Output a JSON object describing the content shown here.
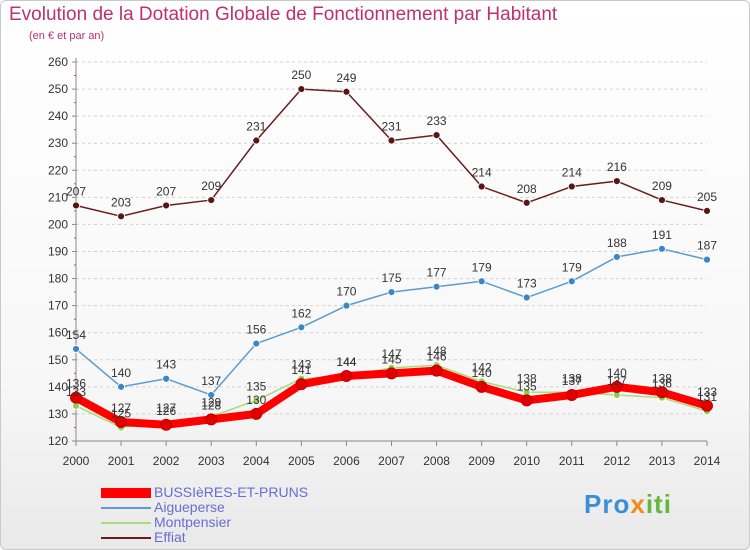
{
  "title": "Evolution de la Dotation Globale de Fonctionnement par Habitant",
  "subtitle": "(en € et par an)",
  "logo": {
    "parts": [
      "Pro",
      "x",
      "iti"
    ],
    "colors": [
      "#3a8fd6",
      "#f08a1c",
      "#62b83a"
    ]
  },
  "chart_data": {
    "type": "line",
    "x": [
      "2000",
      "2001",
      "2002",
      "2003",
      "2004",
      "2005",
      "2006",
      "2007",
      "2008",
      "2009",
      "2010",
      "2011",
      "2012",
      "2013",
      "2014"
    ],
    "ylim": [
      120,
      260
    ],
    "yticks": [
      120,
      130,
      140,
      150,
      160,
      170,
      180,
      190,
      200,
      210,
      220,
      230,
      240,
      250,
      260
    ],
    "grid": "horizontal dashed",
    "legend": "bottom-left",
    "series": [
      {
        "name": "Effiat",
        "color": "#6b1c1c",
        "marker": "#5a1515",
        "values": [
          207,
          203,
          207,
          209,
          231,
          250,
          249,
          231,
          233,
          214,
          208,
          214,
          216,
          209,
          205
        ]
      },
      {
        "name": "Aigueperse",
        "color": "#5b9bd0",
        "marker": "#3d86c6",
        "values": [
          154,
          140,
          143,
          137,
          156,
          162,
          170,
          175,
          177,
          179,
          173,
          179,
          188,
          191,
          187
        ]
      },
      {
        "name": "Montpensier",
        "color": "#a8dc7a",
        "marker": "#8ed04a",
        "values": [
          133,
          125,
          127,
          129,
          135,
          143,
          144,
          147,
          148,
          142,
          138,
          138,
          137,
          136,
          131
        ]
      },
      {
        "name": "BUSSIèRES-ET-PRUNS",
        "color": "#ff0000",
        "marker": "#e00000",
        "values": [
          136,
          127,
          126,
          128,
          130,
          141,
          144,
          145,
          146,
          140,
          135,
          137,
          140,
          138,
          133
        ]
      }
    ]
  }
}
